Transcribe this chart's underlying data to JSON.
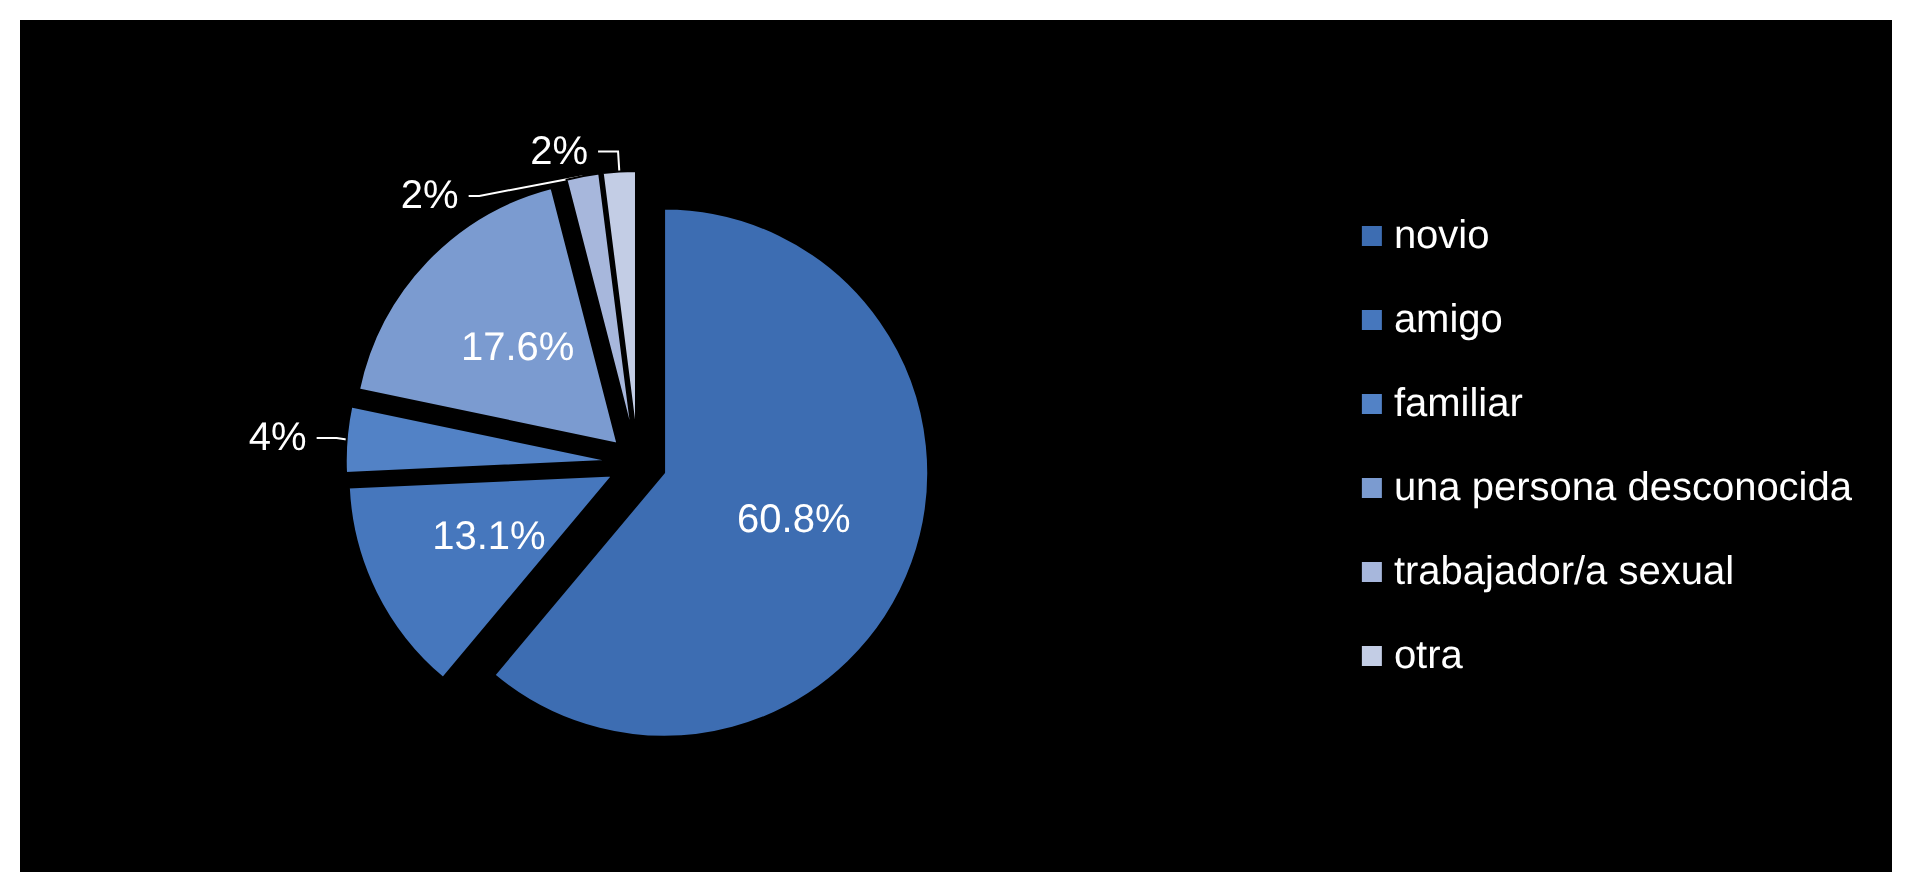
{
  "chart_data": {
    "type": "pie",
    "categories": [
      "novio",
      "amigo",
      "familiar",
      "una persona desconocida",
      "trabajador/a sexual",
      "otra"
    ],
    "values": [
      60.8,
      13.1,
      4,
      17.6,
      2,
      2
    ],
    "colors": [
      "#3d6db2",
      "#4677bd",
      "#5282c6",
      "#7b9bd0",
      "#a7b7dc",
      "#c3cde5"
    ],
    "value_labels": [
      "60.8%",
      "13.1%",
      "4%",
      "17.6%",
      "2%",
      "2%"
    ],
    "legend": "right"
  }
}
